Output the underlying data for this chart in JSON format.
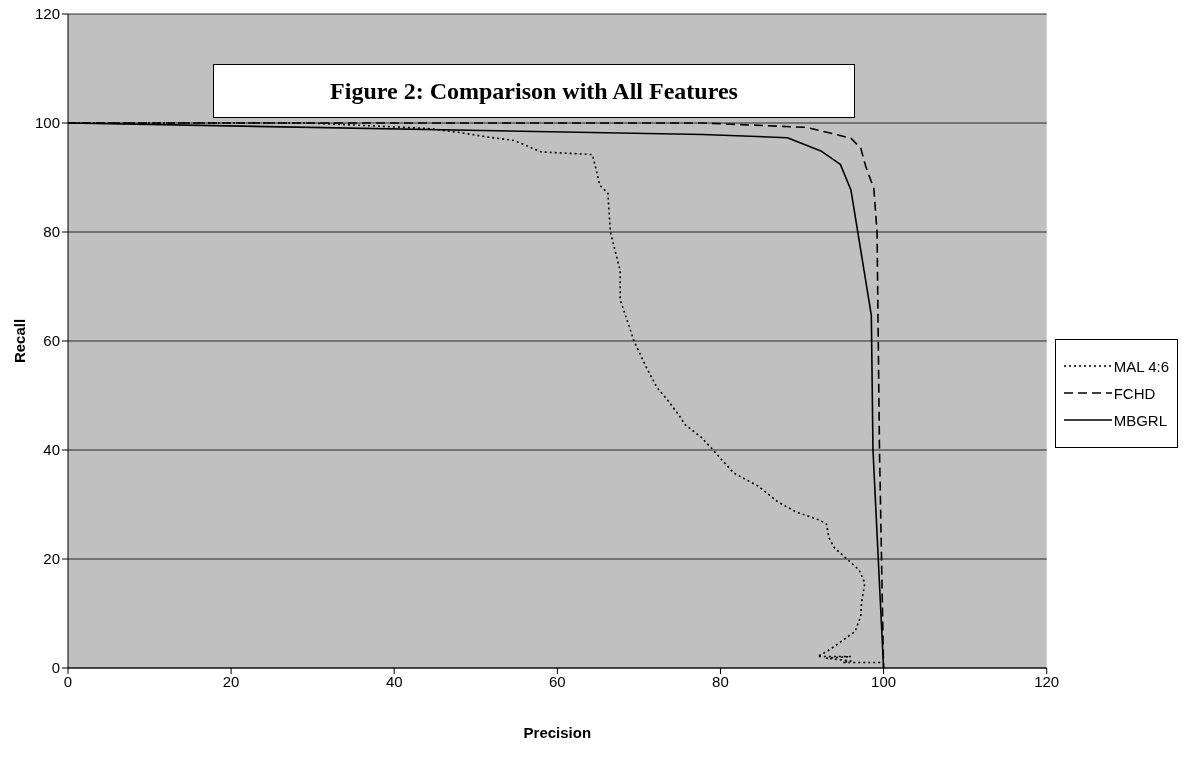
{
  "chart_data": {
    "type": "line",
    "title": "Figure 2: Comparison with All Features",
    "xlabel": "Precision",
    "ylabel": "Recall",
    "xlim": [
      0,
      120
    ],
    "xticks": [
      0,
      20,
      40,
      60,
      80,
      100,
      120
    ],
    "ylim": [
      0,
      120
    ],
    "yticks": [
      0,
      20,
      40,
      60,
      80,
      100,
      120
    ],
    "grid": "y",
    "legend": "right",
    "marker": "none",
    "series": [
      {
        "name": "MAL 4:6",
        "color": "#000000",
        "line_style": "dotted",
        "x": [
          0,
          29.7,
          44.1,
          47.8,
          51.6,
          54.7,
          58,
          64.3,
          64.8,
          65.2,
          66.2,
          66.5,
          67.7,
          67.7,
          68.6,
          69.4,
          70.9,
          72.2,
          73.6,
          74.9,
          75.7,
          77.6,
          79.1,
          81.6,
          84.6,
          87.1,
          89.2,
          92.2,
          93,
          93.3,
          94,
          95.5,
          97,
          97.7,
          97.3,
          97.2,
          96.5,
          94,
          93,
          91.9,
          96,
          93,
          96,
          95,
          100
        ],
        "values": [
          100,
          100,
          99,
          98.3,
          97.4,
          96.8,
          94.7,
          94.2,
          91.2,
          88.6,
          87.1,
          80,
          72.9,
          67.6,
          63.6,
          60,
          55.2,
          51.5,
          49,
          46.4,
          44.6,
          42.4,
          40,
          35.8,
          33.4,
          30.4,
          28.7,
          27.1,
          26.4,
          23.9,
          22,
          20,
          18,
          15.6,
          12,
          9.5,
          6.7,
          4,
          3,
          2.1,
          2.1,
          1.8,
          1.3,
          1,
          1
        ]
      },
      {
        "name": "FCHD",
        "color": "#000000",
        "line_style": "dashed",
        "x": [
          0,
          28,
          77.8,
          90.5,
          93.9,
          96,
          97.2,
          97.8,
          98.8,
          99.2,
          99.5,
          100
        ],
        "values": [
          100,
          100,
          100,
          99.2,
          98,
          97.2,
          95.4,
          92.1,
          88,
          80,
          40,
          0
        ]
      },
      {
        "name": "MBGRL",
        "color": "#000000",
        "line_style": "solid",
        "x": [
          0,
          77.8,
          88.2,
          92.4,
          94.7,
          96,
          98.5,
          98.7,
          100
        ],
        "values": [
          100,
          97.9,
          97.3,
          94.8,
          92.4,
          87.7,
          64.7,
          40,
          0
        ]
      }
    ]
  }
}
